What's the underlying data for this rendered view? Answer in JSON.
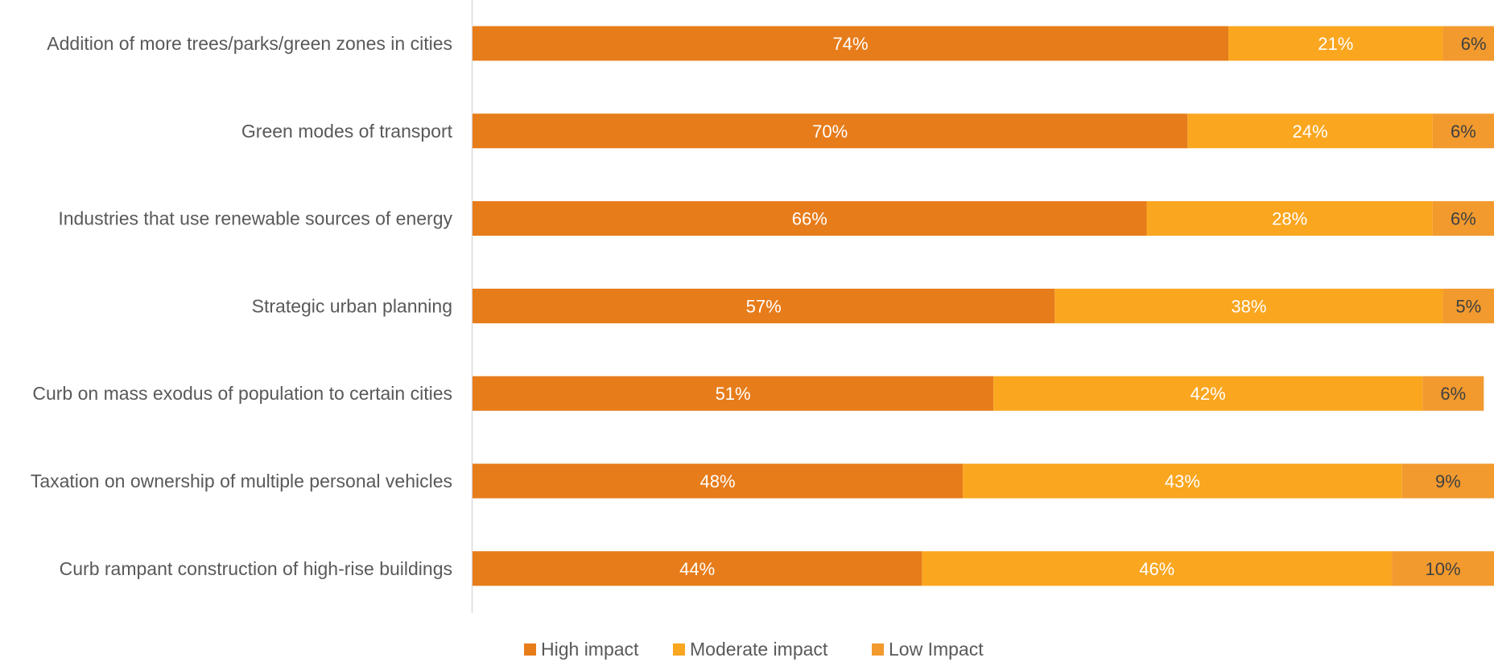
{
  "chart_data": {
    "type": "bar",
    "orientation": "horizontal",
    "stacked": true,
    "categories": [
      "Addition of more trees/parks/green zones in cities",
      "Green modes of transport",
      "Industries that use renewable sources of energy",
      "Strategic urban planning",
      "Curb on mass exodus of population to certain cities",
      "Taxation on ownership of multiple personal vehicles",
      "Curb rampant construction of high-rise buildings"
    ],
    "series": [
      {
        "name": "High impact",
        "color": "#E77C1A",
        "label_color": "#ffffff",
        "values": [
          74,
          70,
          66,
          57,
          51,
          48,
          44
        ],
        "labels": [
          "74%",
          "70%",
          "66%",
          "57%",
          "51%",
          "48%",
          "44%"
        ]
      },
      {
        "name": "Moderate impact",
        "color": "#FAA61F",
        "label_color": "#ffffff",
        "values": [
          21,
          24,
          28,
          38,
          42,
          43,
          46
        ],
        "labels": [
          "21%",
          "24%",
          "28%",
          "38%",
          "42%",
          "43%",
          "46%"
        ]
      },
      {
        "name": "Low Impact",
        "color": "#F29A2E",
        "label_color": "#404040",
        "values": [
          6,
          6,
          6,
          5,
          6,
          9,
          10
        ],
        "labels": [
          "6%",
          "6%",
          "6%",
          "5%",
          "6%",
          "9%",
          "10%"
        ]
      }
    ],
    "xlim": [
      0,
      100
    ],
    "grid": false,
    "legend": "bottom",
    "title": "",
    "xlabel": "",
    "ylabel": ""
  }
}
